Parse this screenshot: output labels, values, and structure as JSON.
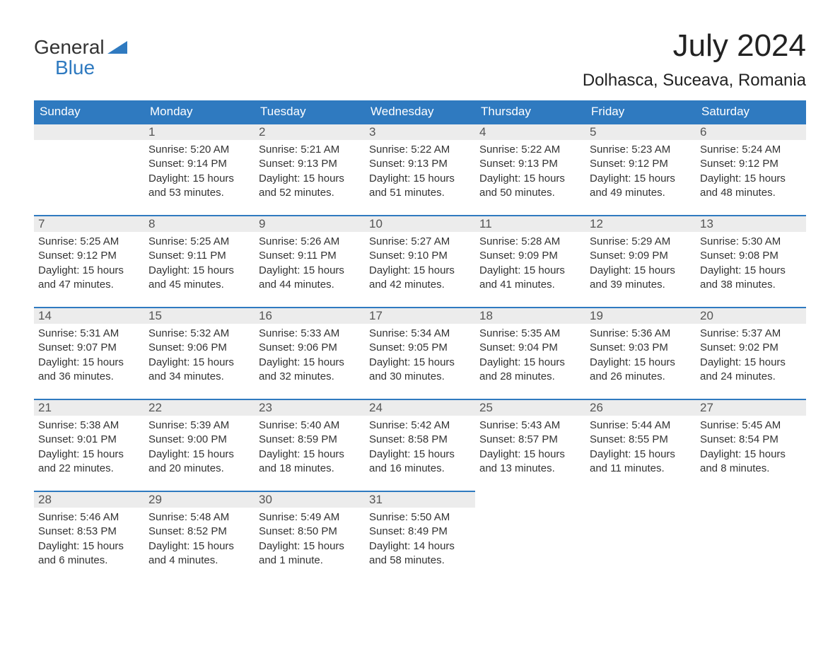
{
  "logo": {
    "line1": "General",
    "line2": "Blue",
    "accent_color": "#2f7ac0"
  },
  "title": "July 2024",
  "location": "Dolhasca, Suceava, Romania",
  "weekdays": [
    "Sunday",
    "Monday",
    "Tuesday",
    "Wednesday",
    "Thursday",
    "Friday",
    "Saturday"
  ],
  "colors": {
    "header_bg": "#2f7ac0",
    "header_fg": "#ffffff",
    "cell_border": "#2f7ac0",
    "daynum_bg": "#ececec",
    "text": "#333333",
    "background": "#ffffff"
  },
  "grid": {
    "rows": 5,
    "cols": 7,
    "first_weekday_index": 1,
    "days_in_month": 31
  },
  "days": [
    {
      "n": 1,
      "sunrise": "5:20 AM",
      "sunset": "9:14 PM",
      "daylight": "15 hours and 53 minutes."
    },
    {
      "n": 2,
      "sunrise": "5:21 AM",
      "sunset": "9:13 PM",
      "daylight": "15 hours and 52 minutes."
    },
    {
      "n": 3,
      "sunrise": "5:22 AM",
      "sunset": "9:13 PM",
      "daylight": "15 hours and 51 minutes."
    },
    {
      "n": 4,
      "sunrise": "5:22 AM",
      "sunset": "9:13 PM",
      "daylight": "15 hours and 50 minutes."
    },
    {
      "n": 5,
      "sunrise": "5:23 AM",
      "sunset": "9:12 PM",
      "daylight": "15 hours and 49 minutes."
    },
    {
      "n": 6,
      "sunrise": "5:24 AM",
      "sunset": "9:12 PM",
      "daylight": "15 hours and 48 minutes."
    },
    {
      "n": 7,
      "sunrise": "5:25 AM",
      "sunset": "9:12 PM",
      "daylight": "15 hours and 47 minutes."
    },
    {
      "n": 8,
      "sunrise": "5:25 AM",
      "sunset": "9:11 PM",
      "daylight": "15 hours and 45 minutes."
    },
    {
      "n": 9,
      "sunrise": "5:26 AM",
      "sunset": "9:11 PM",
      "daylight": "15 hours and 44 minutes."
    },
    {
      "n": 10,
      "sunrise": "5:27 AM",
      "sunset": "9:10 PM",
      "daylight": "15 hours and 42 minutes."
    },
    {
      "n": 11,
      "sunrise": "5:28 AM",
      "sunset": "9:09 PM",
      "daylight": "15 hours and 41 minutes."
    },
    {
      "n": 12,
      "sunrise": "5:29 AM",
      "sunset": "9:09 PM",
      "daylight": "15 hours and 39 minutes."
    },
    {
      "n": 13,
      "sunrise": "5:30 AM",
      "sunset": "9:08 PM",
      "daylight": "15 hours and 38 minutes."
    },
    {
      "n": 14,
      "sunrise": "5:31 AM",
      "sunset": "9:07 PM",
      "daylight": "15 hours and 36 minutes."
    },
    {
      "n": 15,
      "sunrise": "5:32 AM",
      "sunset": "9:06 PM",
      "daylight": "15 hours and 34 minutes."
    },
    {
      "n": 16,
      "sunrise": "5:33 AM",
      "sunset": "9:06 PM",
      "daylight": "15 hours and 32 minutes."
    },
    {
      "n": 17,
      "sunrise": "5:34 AM",
      "sunset": "9:05 PM",
      "daylight": "15 hours and 30 minutes."
    },
    {
      "n": 18,
      "sunrise": "5:35 AM",
      "sunset": "9:04 PM",
      "daylight": "15 hours and 28 minutes."
    },
    {
      "n": 19,
      "sunrise": "5:36 AM",
      "sunset": "9:03 PM",
      "daylight": "15 hours and 26 minutes."
    },
    {
      "n": 20,
      "sunrise": "5:37 AM",
      "sunset": "9:02 PM",
      "daylight": "15 hours and 24 minutes."
    },
    {
      "n": 21,
      "sunrise": "5:38 AM",
      "sunset": "9:01 PM",
      "daylight": "15 hours and 22 minutes."
    },
    {
      "n": 22,
      "sunrise": "5:39 AM",
      "sunset": "9:00 PM",
      "daylight": "15 hours and 20 minutes."
    },
    {
      "n": 23,
      "sunrise": "5:40 AM",
      "sunset": "8:59 PM",
      "daylight": "15 hours and 18 minutes."
    },
    {
      "n": 24,
      "sunrise": "5:42 AM",
      "sunset": "8:58 PM",
      "daylight": "15 hours and 16 minutes."
    },
    {
      "n": 25,
      "sunrise": "5:43 AM",
      "sunset": "8:57 PM",
      "daylight": "15 hours and 13 minutes."
    },
    {
      "n": 26,
      "sunrise": "5:44 AM",
      "sunset": "8:55 PM",
      "daylight": "15 hours and 11 minutes."
    },
    {
      "n": 27,
      "sunrise": "5:45 AM",
      "sunset": "8:54 PM",
      "daylight": "15 hours and 8 minutes."
    },
    {
      "n": 28,
      "sunrise": "5:46 AM",
      "sunset": "8:53 PM",
      "daylight": "15 hours and 6 minutes."
    },
    {
      "n": 29,
      "sunrise": "5:48 AM",
      "sunset": "8:52 PM",
      "daylight": "15 hours and 4 minutes."
    },
    {
      "n": 30,
      "sunrise": "5:49 AM",
      "sunset": "8:50 PM",
      "daylight": "15 hours and 1 minute."
    },
    {
      "n": 31,
      "sunrise": "5:50 AM",
      "sunset": "8:49 PM",
      "daylight": "14 hours and 58 minutes."
    }
  ],
  "labels": {
    "sunrise": "Sunrise: ",
    "sunset": "Sunset: ",
    "daylight": "Daylight: "
  }
}
